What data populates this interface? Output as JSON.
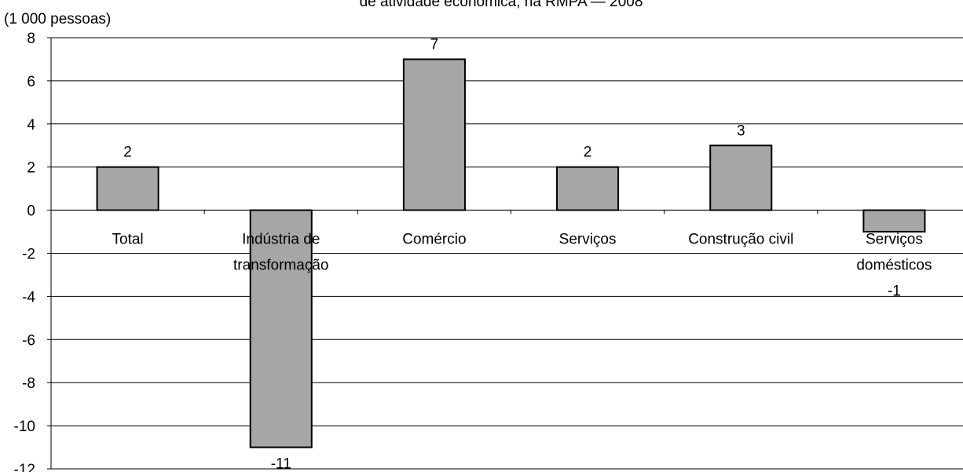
{
  "chart_data": {
    "type": "bar",
    "title": "de atividade econômica, na RMPA — 2008",
    "ylabel": "(1 000 pessoas)",
    "categories": [
      [
        "Total"
      ],
      [
        "Indústria de",
        "transformação"
      ],
      [
        "Comércio"
      ],
      [
        "Serviços"
      ],
      [
        "Construção civil"
      ],
      [
        "Serviços",
        "domésticos"
      ]
    ],
    "values": [
      2,
      -11,
      7,
      2,
      3,
      -1
    ],
    "ylim": [
      -12,
      8
    ],
    "yticks": [
      8,
      6,
      4,
      2,
      0,
      -2,
      -4,
      -6,
      -8,
      -10,
      -12
    ],
    "grid": true,
    "bar_color": "#a6a6a6",
    "bar_stroke": "#000000"
  }
}
